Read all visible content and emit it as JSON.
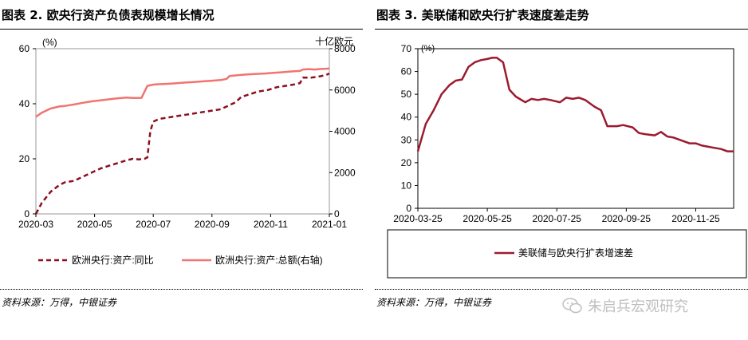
{
  "left": {
    "title": "图表 2. 欧央行资产负债表规模增长情况",
    "source": "资料来源：万得，中银证券",
    "chart_data": {
      "type": "line",
      "unit_left": "(%)",
      "unit_right": "十亿欧元",
      "x_ticks": [
        "2020-03",
        "2020-05",
        "2020-07",
        "2020-09",
        "2020-11",
        "2021-01"
      ],
      "y_left_ticks": [
        "0",
        "20",
        "40",
        "60"
      ],
      "y_right_ticks": [
        "0",
        "2000",
        "4000",
        "6000",
        "8000"
      ],
      "ylim_left": [
        0,
        60
      ],
      "ylim_right": [
        0,
        8000
      ],
      "xlim": [
        0,
        10
      ],
      "series": [
        {
          "name": "欧洲央行:资产:同比",
          "axis": "left",
          "style": "dashed",
          "color": "#8B0F1E",
          "points": [
            [
              0,
              0
            ],
            [
              0.2,
              4
            ],
            [
              0.5,
              8
            ],
            [
              0.8,
              10.5
            ],
            [
              1.0,
              11.5
            ],
            [
              1.3,
              12
            ],
            [
              1.6,
              13.5
            ],
            [
              1.9,
              15
            ],
            [
              2.2,
              16.5
            ],
            [
              2.5,
              17.5
            ],
            [
              2.8,
              18.5
            ],
            [
              3.1,
              19.5
            ],
            [
              3.3,
              20
            ],
            [
              3.5,
              19.8
            ],
            [
              3.7,
              20
            ],
            [
              3.8,
              20.5
            ],
            [
              3.9,
              30
            ],
            [
              4.0,
              33.5
            ],
            [
              4.2,
              34.5
            ],
            [
              4.5,
              35
            ],
            [
              4.8,
              35.5
            ],
            [
              5.1,
              36
            ],
            [
              5.4,
              36.5
            ],
            [
              5.7,
              37
            ],
            [
              6.0,
              37.5
            ],
            [
              6.3,
              38
            ],
            [
              6.6,
              39.5
            ],
            [
              6.8,
              40.5
            ],
            [
              7.0,
              42.5
            ],
            [
              7.3,
              43.5
            ],
            [
              7.6,
              44.5
            ],
            [
              7.9,
              45
            ],
            [
              8.2,
              46
            ],
            [
              8.5,
              46.5
            ],
            [
              8.8,
              47
            ],
            [
              9.0,
              47.5
            ],
            [
              9.1,
              49.5
            ],
            [
              9.4,
              49.5
            ],
            [
              9.7,
              50
            ],
            [
              9.9,
              50.5
            ],
            [
              10,
              51
            ]
          ]
        },
        {
          "name": "欧洲央行:资产:总额(右轴)",
          "axis": "right",
          "style": "solid",
          "color": "#F07470",
          "points": [
            [
              0,
              4700
            ],
            [
              0.2,
              4900
            ],
            [
              0.5,
              5100
            ],
            [
              0.8,
              5200
            ],
            [
              1.0,
              5230
            ],
            [
              1.3,
              5300
            ],
            [
              1.6,
              5380
            ],
            [
              1.9,
              5450
            ],
            [
              2.2,
              5500
            ],
            [
              2.5,
              5550
            ],
            [
              2.8,
              5600
            ],
            [
              3.1,
              5630
            ],
            [
              3.3,
              5610
            ],
            [
              3.6,
              5620
            ],
            [
              3.8,
              6200
            ],
            [
              4.0,
              6260
            ],
            [
              4.2,
              6280
            ],
            [
              4.5,
              6300
            ],
            [
              4.8,
              6330
            ],
            [
              5.1,
              6360
            ],
            [
              5.4,
              6390
            ],
            [
              5.7,
              6420
            ],
            [
              6.0,
              6450
            ],
            [
              6.3,
              6480
            ],
            [
              6.5,
              6540
            ],
            [
              6.6,
              6680
            ],
            [
              6.9,
              6720
            ],
            [
              7.2,
              6750
            ],
            [
              7.5,
              6780
            ],
            [
              7.8,
              6800
            ],
            [
              8.1,
              6830
            ],
            [
              8.4,
              6860
            ],
            [
              8.7,
              6900
            ],
            [
              9.0,
              6920
            ],
            [
              9.1,
              6990
            ],
            [
              9.3,
              7010
            ],
            [
              9.5,
              6990
            ],
            [
              9.7,
              7020
            ],
            [
              9.9,
              7030
            ],
            [
              10,
              7040
            ]
          ]
        }
      ]
    }
  },
  "right": {
    "title": "图表 3. 美联储和欧央行扩表速度差走势",
    "source": "资料来源：万得，中银证券",
    "watermark": "朱启兵宏观研究",
    "chart_data": {
      "type": "line",
      "unit": "(%)",
      "x_ticks": [
        "2020-03-25",
        "2020-05-25",
        "2020-07-25",
        "2020-09-25",
        "2020-11-25"
      ],
      "y_ticks": [
        "0",
        "10",
        "20",
        "30",
        "40",
        "50",
        "60",
        "70"
      ],
      "ylim": [
        0,
        70
      ],
      "xlim": [
        0,
        10
      ],
      "series": [
        {
          "name": "美联储与欧央行扩表增速差",
          "color": "#9B1B30",
          "points": [
            [
              0,
              25
            ],
            [
              0.25,
              37
            ],
            [
              0.5,
              43
            ],
            [
              0.75,
              50
            ],
            [
              1.0,
              54
            ],
            [
              1.2,
              56
            ],
            [
              1.4,
              56.5
            ],
            [
              1.6,
              62
            ],
            [
              1.8,
              64
            ],
            [
              2.0,
              65
            ],
            [
              2.2,
              65.5
            ],
            [
              2.35,
              66
            ],
            [
              2.5,
              66
            ],
            [
              2.7,
              64
            ],
            [
              2.9,
              52
            ],
            [
              3.1,
              49
            ],
            [
              3.4,
              46.5
            ],
            [
              3.6,
              48
            ],
            [
              3.8,
              47.5
            ],
            [
              4.0,
              48
            ],
            [
              4.2,
              47.5
            ],
            [
              4.5,
              46.5
            ],
            [
              4.7,
              48.5
            ],
            [
              4.9,
              48
            ],
            [
              5.1,
              48.5
            ],
            [
              5.3,
              47.5
            ],
            [
              5.6,
              44.5
            ],
            [
              5.8,
              43
            ],
            [
              6.0,
              36
            ],
            [
              6.3,
              36
            ],
            [
              6.5,
              36.5
            ],
            [
              6.8,
              35.5
            ],
            [
              7.0,
              33
            ],
            [
              7.2,
              32.5
            ],
            [
              7.5,
              32
            ],
            [
              7.7,
              33.5
            ],
            [
              7.9,
              31.5
            ],
            [
              8.1,
              31
            ],
            [
              8.4,
              29.5
            ],
            [
              8.6,
              28.5
            ],
            [
              8.8,
              28.5
            ],
            [
              9.0,
              27.5
            ],
            [
              9.2,
              27
            ],
            [
              9.4,
              26.5
            ],
            [
              9.6,
              26
            ],
            [
              9.8,
              25
            ],
            [
              10,
              25
            ]
          ]
        }
      ]
    }
  }
}
